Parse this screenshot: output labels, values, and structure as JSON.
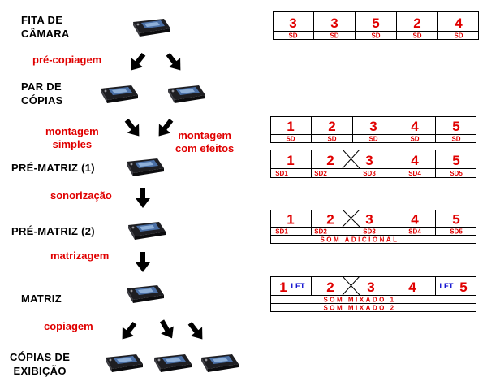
{
  "stages": [
    {
      "id": "camera",
      "label": "FITA DE\nCÂMARA"
    },
    {
      "id": "pair",
      "label": "PAR DE\nCÓPIAS"
    },
    {
      "id": "pm1",
      "label": "PRÉ-MATRIZ (1)"
    },
    {
      "id": "pm2",
      "label": "PRÉ-MATRIZ (2)"
    },
    {
      "id": "master",
      "label": "MATRIZ"
    },
    {
      "id": "copies",
      "label": "CÓPIAS DE\nEXIBIÇÃO"
    }
  ],
  "processes": {
    "precopy": "pré-copiagem",
    "simple": "montagem\nsimples",
    "effects": "montagem\ncom efeitos",
    "sound": "sonorização",
    "mastering": "matrizagem",
    "copying": "copiagem"
  },
  "strips": {
    "s1": {
      "numbers": [
        "3",
        "3",
        "5",
        "2",
        "4"
      ],
      "labels": [
        "SD",
        "SD",
        "SD",
        "SD",
        "SD"
      ]
    },
    "s2": {
      "numbers": [
        "1",
        "2",
        "3",
        "4",
        "5"
      ],
      "labels": [
        "SD",
        "SD",
        "SD",
        "SD",
        "SD"
      ]
    },
    "s3": {
      "numbers": [
        "1",
        "2",
        "3",
        "4",
        "5"
      ],
      "labels": [
        "SD1",
        "SD2",
        "SD3",
        "SD4",
        "SD5"
      ]
    },
    "s4": {
      "numbers": [
        "1",
        "2",
        "3",
        "4",
        "5"
      ],
      "labels": [
        "SD1",
        "SD2",
        "SD3",
        "SD4",
        "SD5"
      ],
      "extra": "SOM ADICIONAL"
    },
    "s5": {
      "numbers": [
        "1",
        "2",
        "3",
        "4",
        "5"
      ],
      "let": "LET",
      "mix1": "SOM MIXADO 1",
      "mix2": "SOM MIXADO 2"
    }
  },
  "colors": {
    "number": "#e00000",
    "let": "#0000cc",
    "tape_body": "#2a2a2e",
    "tape_label": "#4a6fa5"
  }
}
